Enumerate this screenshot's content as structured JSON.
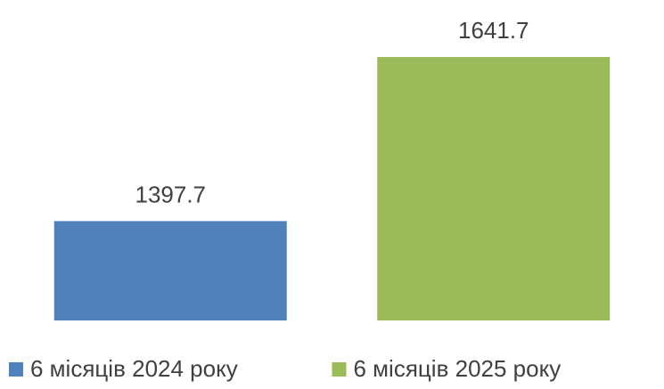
{
  "chart_data": {
    "type": "bar",
    "categories": [
      null
    ],
    "series": [
      {
        "name": "6 місяців 2024 року",
        "color": "#4f81bd",
        "values": [
          1397.7
        ]
      },
      {
        "name": "6 місяців 2025 року",
        "color": "#9bbb59",
        "values": [
          1641.7
        ]
      }
    ],
    "ylim": [
      1250,
      1700
    ],
    "legend": "bottom"
  }
}
